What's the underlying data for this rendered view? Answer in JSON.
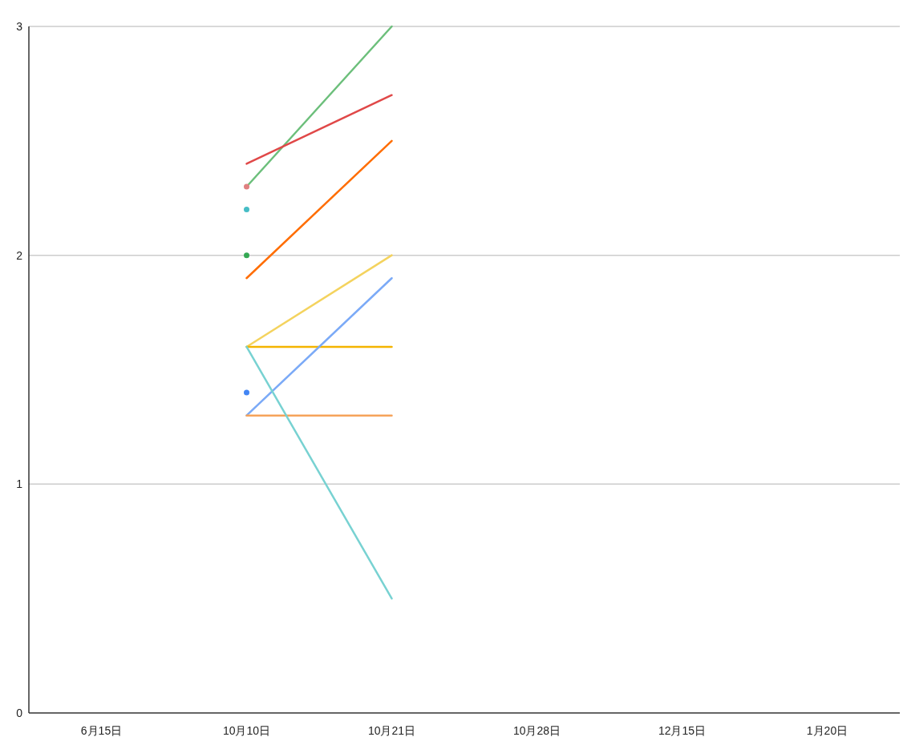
{
  "chart_data": {
    "type": "line",
    "categories": [
      "6月15日",
      "10月10日",
      "10月21日",
      "10月28日",
      "12月15日",
      "1月20日"
    ],
    "ylim": [
      0,
      3
    ],
    "yticks": [
      0,
      1,
      2,
      3
    ],
    "grid": "y",
    "series": [
      {
        "color": "#6cbf7b",
        "values": [
          null,
          2.3,
          3.0,
          null,
          null,
          null
        ]
      },
      {
        "color": "#e04848",
        "values": [
          null,
          2.4,
          2.7,
          null,
          null,
          null
        ]
      },
      {
        "color": "#ff6d01",
        "values": [
          null,
          1.9,
          2.5,
          null,
          null,
          null
        ]
      },
      {
        "color": "#f4d35e",
        "values": [
          null,
          1.6,
          2.0,
          null,
          null,
          null
        ]
      },
      {
        "color": "#f4b400",
        "values": [
          null,
          1.6,
          1.6,
          null,
          null,
          null
        ]
      },
      {
        "color": "#7baaf7",
        "values": [
          null,
          1.3,
          1.9,
          null,
          null,
          null
        ]
      },
      {
        "color": "#f6a35a",
        "values": [
          null,
          1.3,
          1.3,
          null,
          null,
          null
        ]
      },
      {
        "color": "#78d2d2",
        "values": [
          null,
          1.6,
          0.5,
          null,
          null,
          null
        ]
      },
      {
        "type": "scatter",
        "color": "#e08080",
        "values": [
          null,
          2.3,
          null,
          null,
          null,
          null
        ]
      },
      {
        "type": "scatter",
        "color": "#46bdc6",
        "values": [
          null,
          2.2,
          null,
          null,
          null,
          null
        ]
      },
      {
        "type": "scatter",
        "color": "#34a853",
        "values": [
          null,
          2.0,
          null,
          null,
          null,
          null
        ]
      },
      {
        "type": "scatter",
        "color": "#4285f4",
        "values": [
          null,
          1.4,
          null,
          null,
          null,
          null
        ]
      }
    ]
  }
}
